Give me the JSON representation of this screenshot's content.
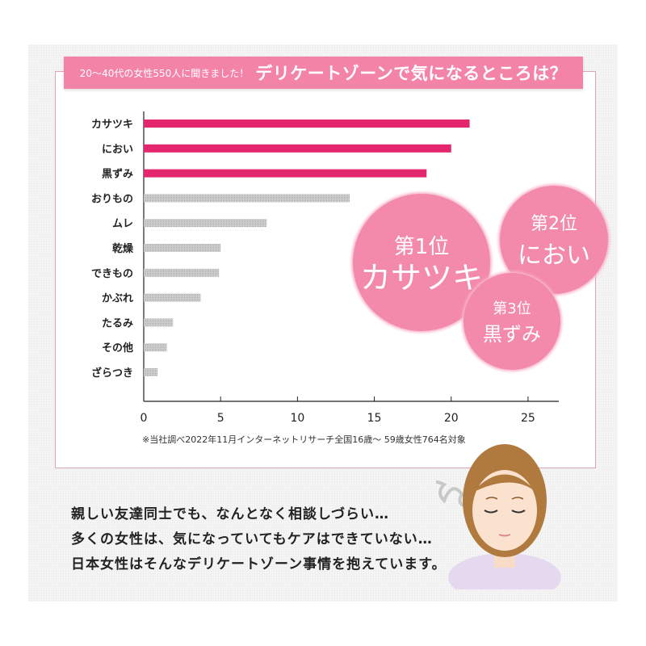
{
  "header": {
    "subtitle": "20〜40代の女性550人に聞きました！",
    "title": "デリケートゾーンで気になるところは？"
  },
  "chart_data": {
    "type": "bar",
    "orientation": "horizontal",
    "categories": [
      "カサツキ",
      "におい",
      "黒ずみ",
      "おりもの",
      "ムレ",
      "乾燥",
      "できもの",
      "かぶれ",
      "たるみ",
      "その他",
      "ざらつき"
    ],
    "values": [
      21.2,
      20.0,
      18.4,
      13.4,
      8.0,
      5.0,
      4.9,
      3.7,
      1.9,
      1.5,
      0.9
    ],
    "highlight_count": 3,
    "highlight_color": "#e3266d",
    "other_color": "#c4c4c4",
    "xticks": [
      0,
      5,
      10,
      15,
      20,
      25
    ],
    "xlim": [
      0,
      27
    ],
    "xlabel": "",
    "ylabel": "",
    "title": ""
  },
  "note": "※当社調べ2022年11月インターネットリサーチ全国16歳〜 59歳女性764名対象",
  "rankings": [
    {
      "rank": "第1位",
      "name": "カサツキ"
    },
    {
      "rank": "第2位",
      "name": "におい"
    },
    {
      "rank": "第3位",
      "name": "黒ずみ"
    }
  ],
  "message": [
    "親しい友達同士でも、なんとなく相談しづらい…",
    "多くの女性は、気になっていてもケアはできていない…",
    "日本女性はそんなデリケートゾーン事情を抱えています。"
  ]
}
